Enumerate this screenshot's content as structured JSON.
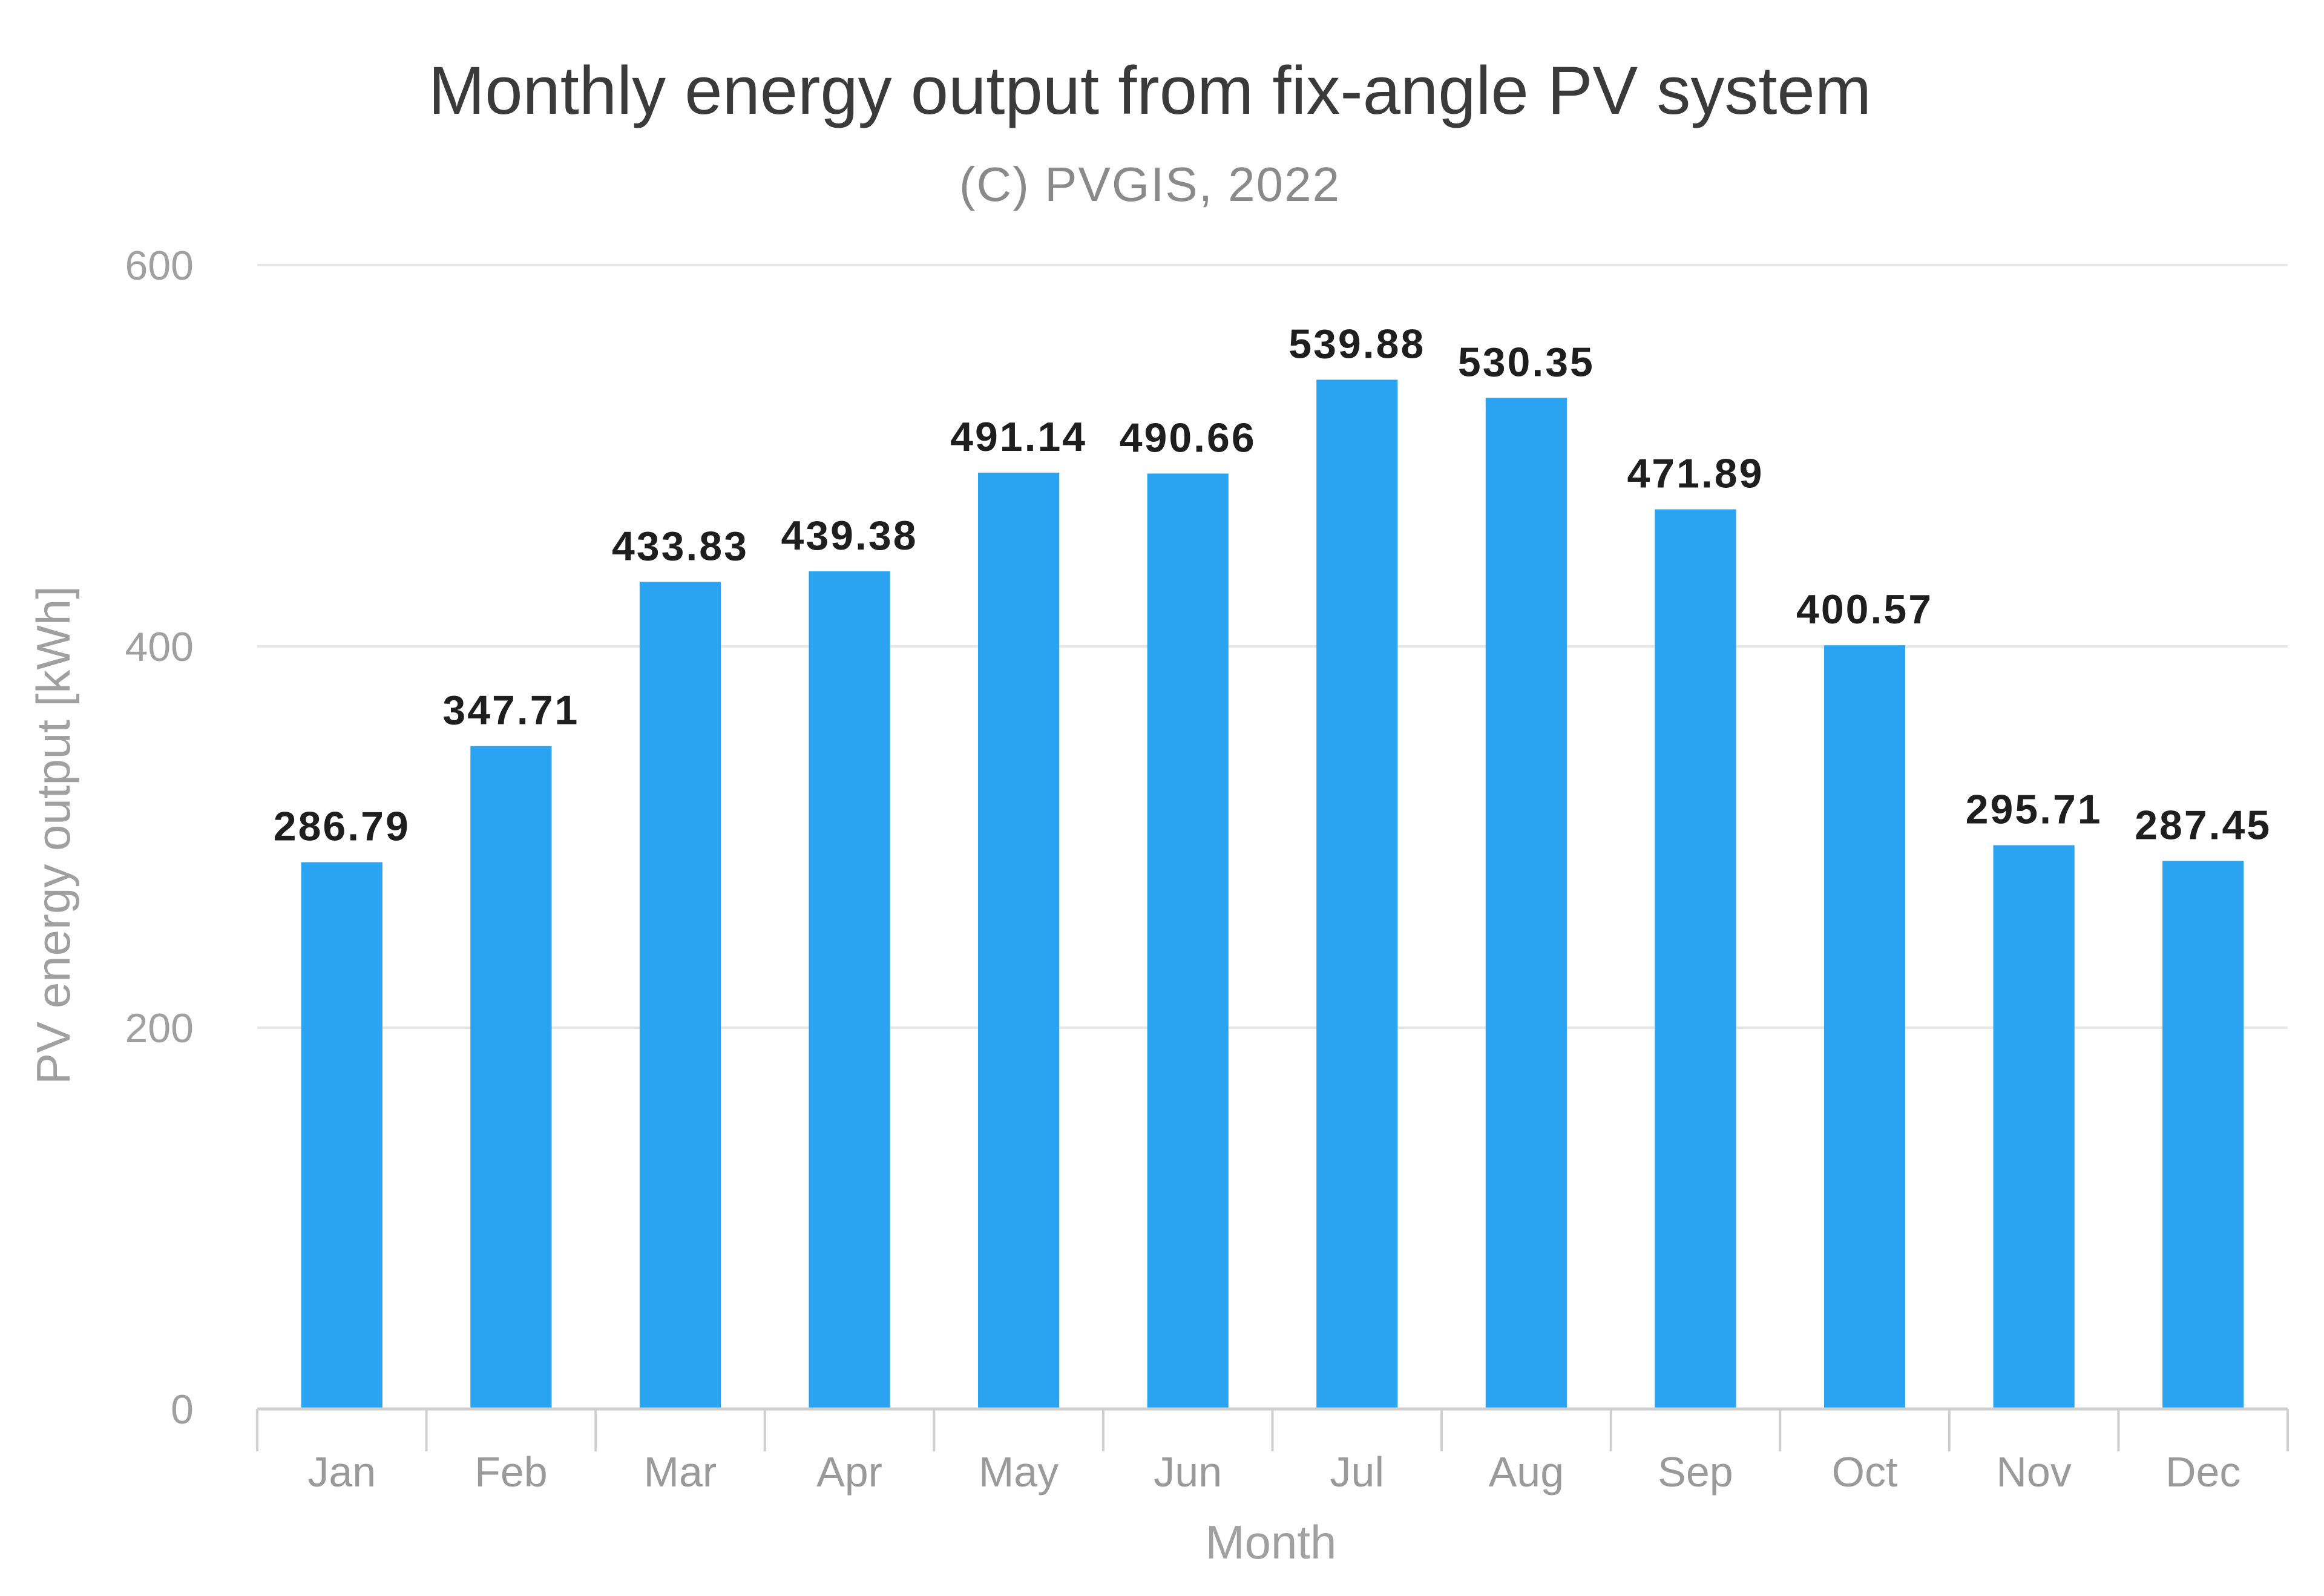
{
  "chart_data": {
    "type": "bar",
    "title": "Monthly energy output from fix-angle PV system",
    "subtitle": "(C) PVGIS, 2022",
    "xlabel": "Month",
    "ylabel": "PV energy output [kWh]",
    "ylim": [
      0,
      600
    ],
    "yticks": [
      0,
      200,
      400,
      600
    ],
    "grid": true,
    "categories": [
      "Jan",
      "Feb",
      "Mar",
      "Apr",
      "May",
      "Jun",
      "Jul",
      "Aug",
      "Sep",
      "Oct",
      "Nov",
      "Dec"
    ],
    "values": [
      286.79,
      347.71,
      433.83,
      439.38,
      491.14,
      490.66,
      539.88,
      530.35,
      471.89,
      400.57,
      295.71,
      287.45
    ],
    "value_labels": [
      "286.79",
      "347.71",
      "433.83",
      "439.38",
      "491.14",
      "490.66",
      "539.88",
      "530.35",
      "471.89",
      "400.57",
      "295.71",
      "287.45"
    ],
    "bar_color": "#2aa4f0"
  }
}
